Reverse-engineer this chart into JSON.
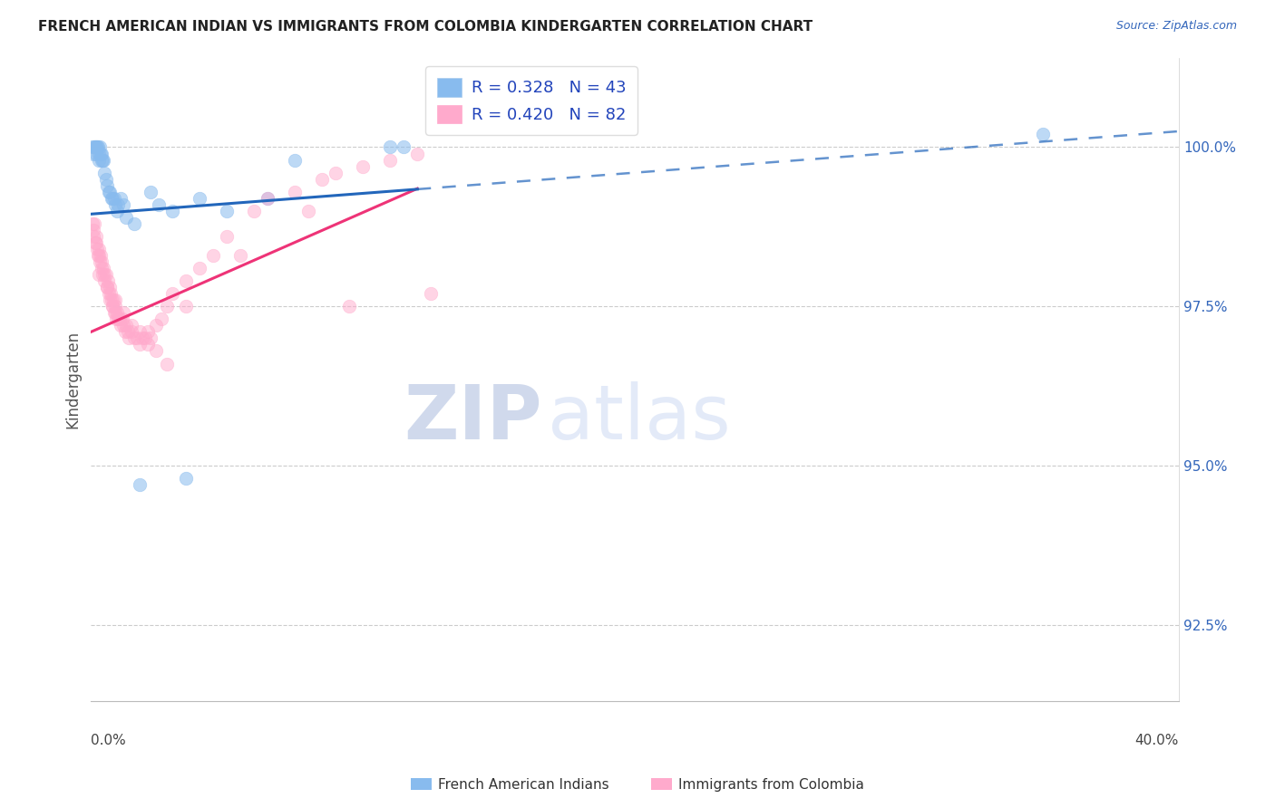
{
  "title": "FRENCH AMERICAN INDIAN VS IMMIGRANTS FROM COLOMBIA KINDERGARTEN CORRELATION CHART",
  "source": "Source: ZipAtlas.com",
  "ylabel": "Kindergarten",
  "yticks": [
    92.5,
    95.0,
    97.5,
    100.0
  ],
  "ytick_labels": [
    "92.5%",
    "95.0%",
    "97.5%",
    "100.0%"
  ],
  "xlim": [
    0.0,
    40.0
  ],
  "ylim": [
    91.3,
    101.4
  ],
  "blue_R": 0.328,
  "blue_N": 43,
  "pink_R": 0.42,
  "pink_N": 82,
  "blue_color": "#88BBEE",
  "pink_color": "#FFAACC",
  "blue_line_color": "#2266BB",
  "pink_line_color": "#EE3377",
  "legend_label_blue": "French American Indians",
  "legend_label_pink": "Immigrants from Colombia",
  "watermark_zip": "ZIP",
  "watermark_atlas": "atlas",
  "blue_line_x0": 0.0,
  "blue_line_y0": 98.95,
  "blue_line_x1": 40.0,
  "blue_line_y1": 100.25,
  "blue_line_solid_end": 12.0,
  "pink_line_x0": 0.0,
  "pink_line_y0": 97.1,
  "pink_line_x1": 12.0,
  "pink_line_y1": 99.35,
  "blue_points_x": [
    0.05,
    0.1,
    0.12,
    0.15,
    0.18,
    0.2,
    0.22,
    0.25,
    0.28,
    0.3,
    0.32,
    0.35,
    0.38,
    0.4,
    0.42,
    0.45,
    0.5,
    0.55,
    0.6,
    0.65,
    0.7,
    0.75,
    0.8,
    0.85,
    0.9,
    0.95,
    1.0,
    1.1,
    1.2,
    1.3,
    1.6,
    1.8,
    2.2,
    2.5,
    3.0,
    3.5,
    4.0,
    5.0,
    6.5,
    7.5,
    11.0,
    11.5,
    35.0
  ],
  "blue_points_y": [
    100.0,
    99.9,
    100.0,
    100.0,
    100.0,
    99.9,
    100.0,
    100.0,
    99.9,
    99.8,
    100.0,
    99.9,
    99.8,
    99.9,
    99.8,
    99.8,
    99.6,
    99.5,
    99.4,
    99.3,
    99.3,
    99.2,
    99.2,
    99.2,
    99.1,
    99.0,
    99.1,
    99.2,
    99.1,
    98.9,
    98.8,
    94.7,
    99.3,
    99.1,
    99.0,
    94.8,
    99.2,
    99.0,
    99.2,
    99.8,
    100.0,
    100.0,
    100.2
  ],
  "pink_points_x": [
    0.05,
    0.08,
    0.1,
    0.12,
    0.15,
    0.18,
    0.2,
    0.22,
    0.25,
    0.28,
    0.3,
    0.32,
    0.35,
    0.38,
    0.4,
    0.42,
    0.45,
    0.48,
    0.5,
    0.55,
    0.6,
    0.62,
    0.65,
    0.68,
    0.7,
    0.72,
    0.75,
    0.78,
    0.8,
    0.82,
    0.85,
    0.88,
    0.9,
    0.92,
    0.95,
    1.0,
    1.05,
    1.1,
    1.15,
    1.2,
    1.25,
    1.3,
    1.35,
    1.4,
    1.5,
    1.6,
    1.7,
    1.8,
    1.9,
    2.0,
    2.1,
    2.2,
    2.4,
    2.6,
    2.8,
    3.0,
    3.5,
    4.0,
    4.5,
    5.0,
    6.0,
    6.5,
    7.5,
    8.5,
    9.0,
    10.0,
    11.0,
    12.0,
    0.3,
    0.6,
    0.9,
    1.2,
    1.5,
    1.8,
    2.1,
    2.4,
    2.8,
    3.5,
    5.5,
    8.0,
    9.5,
    12.5
  ],
  "pink_points_y": [
    98.8,
    98.7,
    98.6,
    98.8,
    98.5,
    98.6,
    98.5,
    98.4,
    98.3,
    98.4,
    98.3,
    98.2,
    98.3,
    98.1,
    98.2,
    98.0,
    98.1,
    98.0,
    97.9,
    98.0,
    97.8,
    97.9,
    97.7,
    97.8,
    97.6,
    97.7,
    97.6,
    97.5,
    97.5,
    97.6,
    97.4,
    97.5,
    97.4,
    97.3,
    97.4,
    97.3,
    97.3,
    97.2,
    97.3,
    97.2,
    97.1,
    97.2,
    97.1,
    97.0,
    97.1,
    97.0,
    97.0,
    96.9,
    97.0,
    97.0,
    97.1,
    97.0,
    97.2,
    97.3,
    97.5,
    97.7,
    97.9,
    98.1,
    98.3,
    98.6,
    99.0,
    99.2,
    99.3,
    99.5,
    99.6,
    99.7,
    99.8,
    99.9,
    98.0,
    97.8,
    97.6,
    97.4,
    97.2,
    97.1,
    96.9,
    96.8,
    96.6,
    97.5,
    98.3,
    99.0,
    97.5,
    97.7
  ]
}
